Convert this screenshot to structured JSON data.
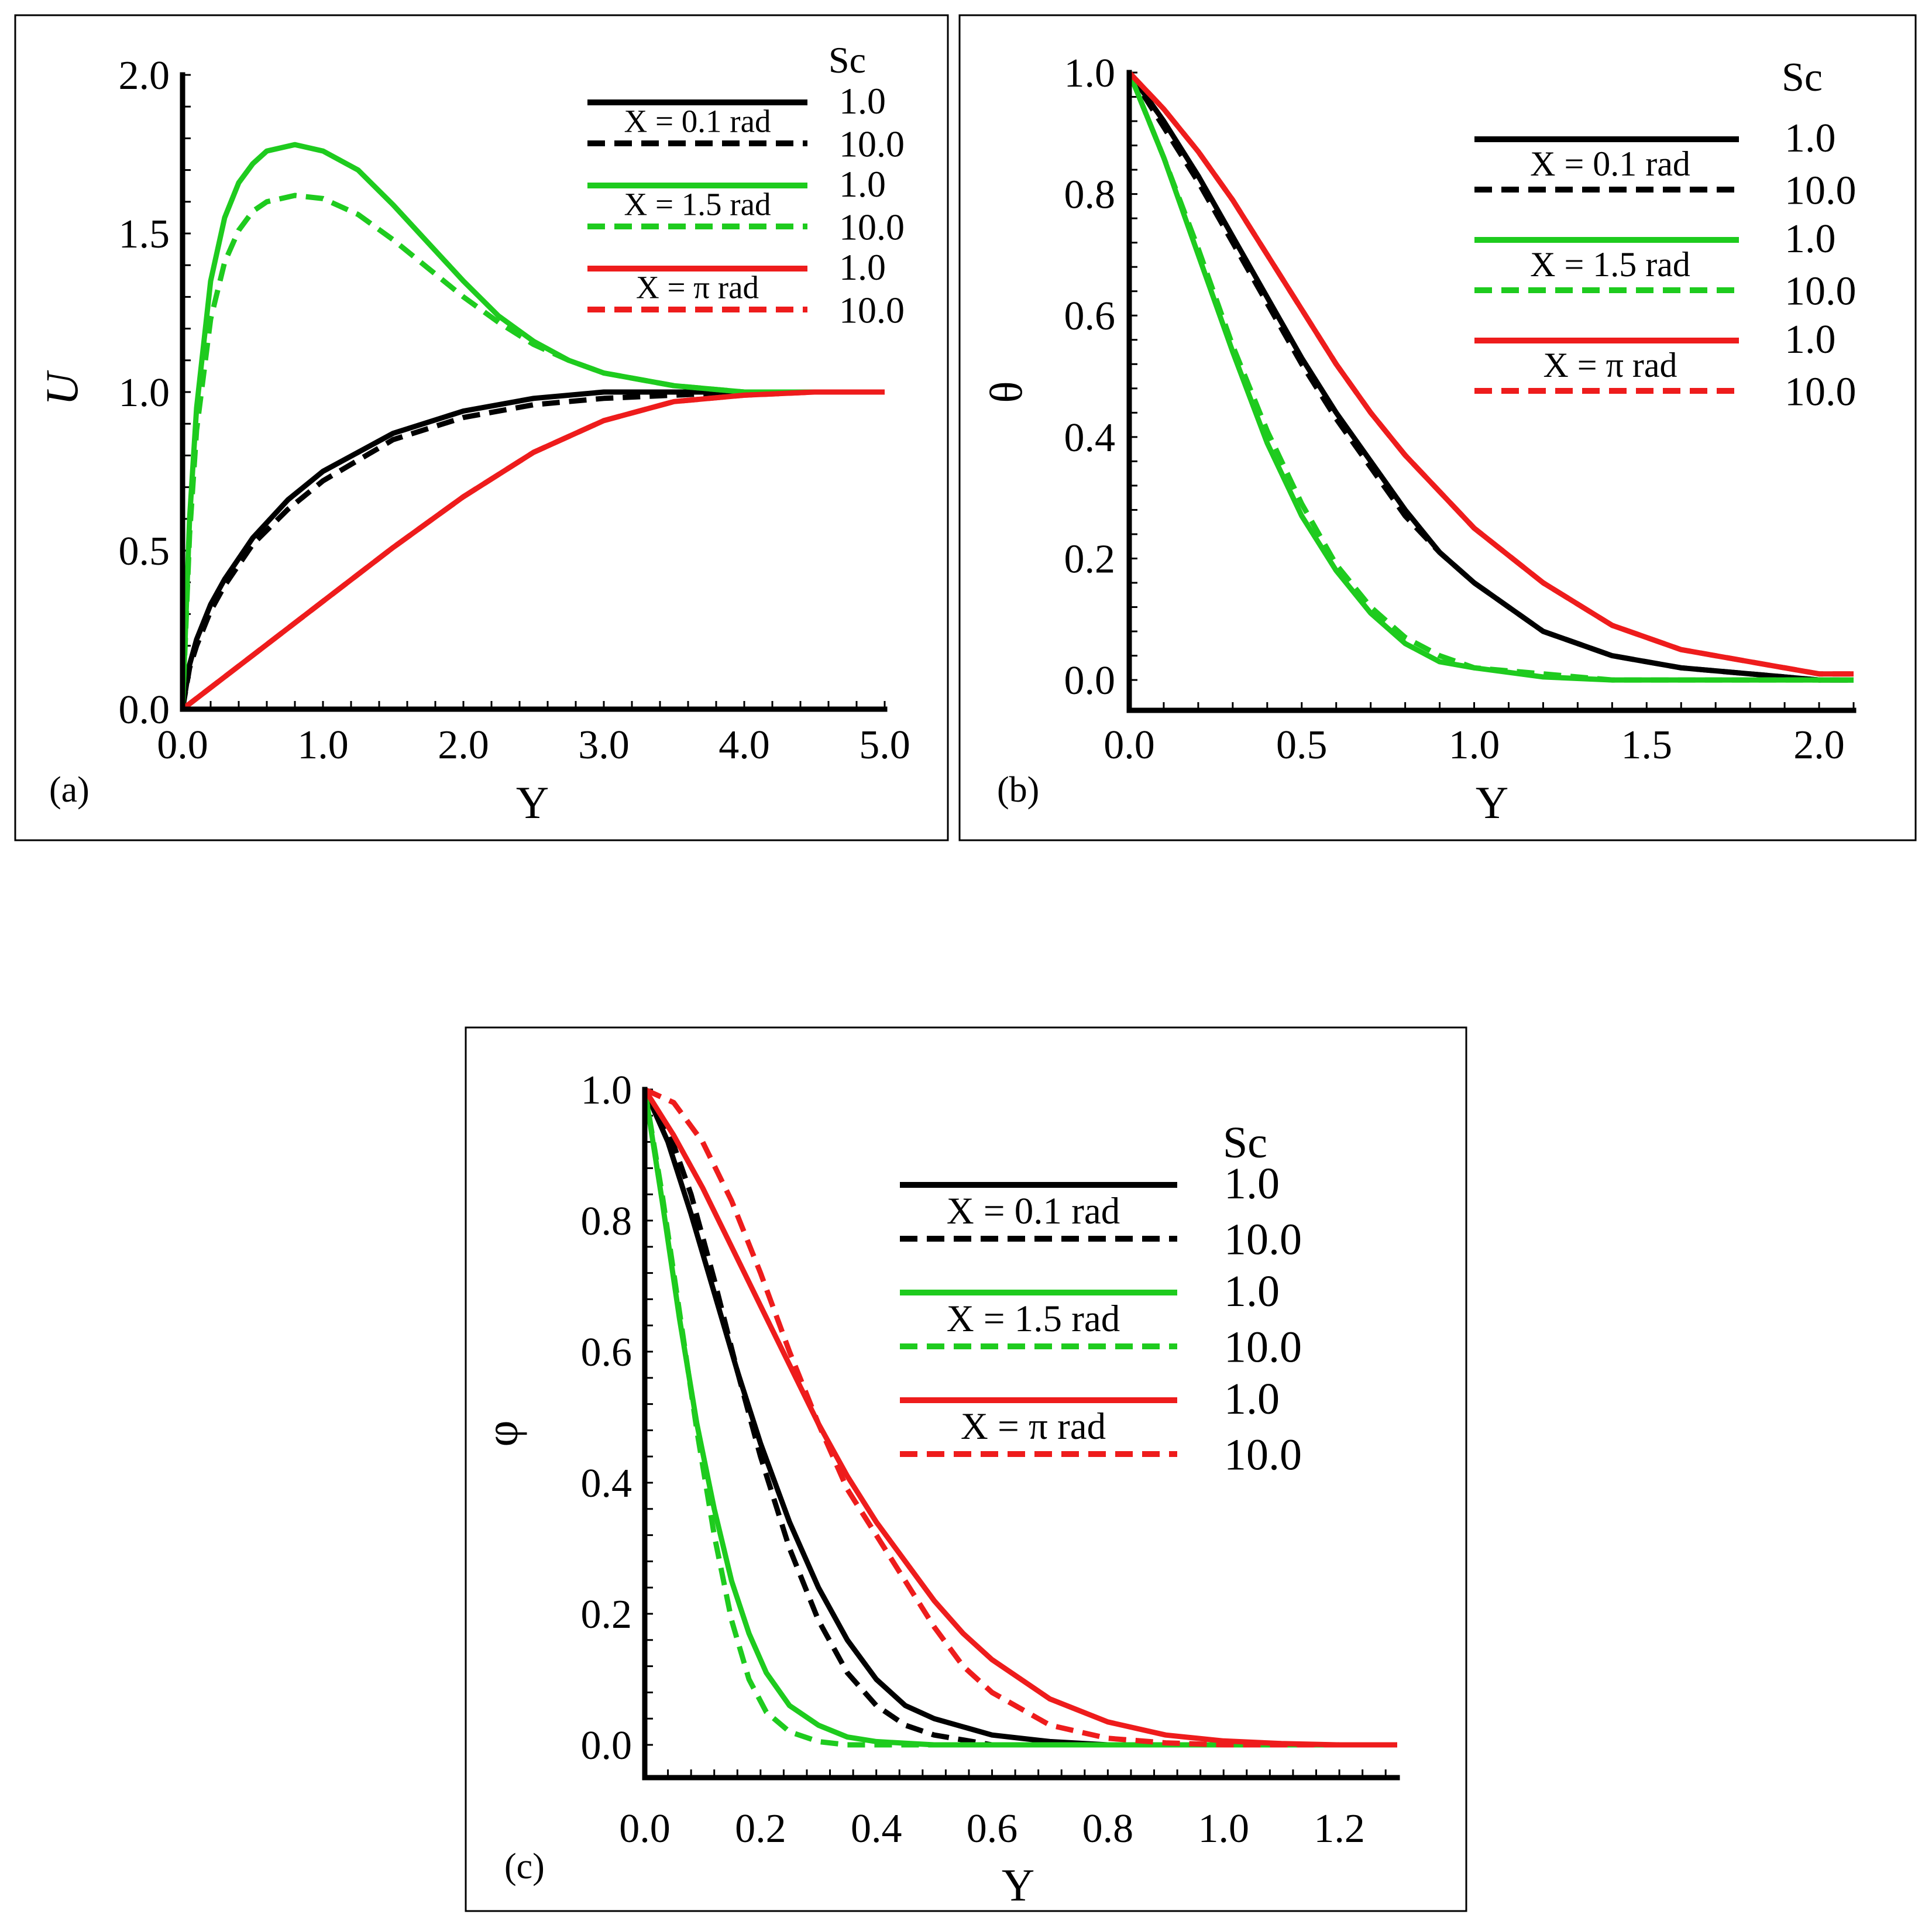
{
  "colors": {
    "black": "#000000",
    "green": "#1ecb1e",
    "red": "#ee1c1c"
  },
  "chart_data": [
    {
      "type": "line",
      "panel_label": "(a)",
      "xlabel": "Y",
      "ylabel": "U",
      "xlim": [
        0,
        5
      ],
      "ylim": [
        0,
        2
      ],
      "xticks": [
        "0.0",
        "1.0",
        "2.0",
        "3.0",
        "4.0",
        "5.0"
      ],
      "yticks": [
        "0.0",
        "0.5",
        "1.0",
        "1.5",
        "2.0"
      ],
      "xtick_values": [
        0,
        1,
        2,
        3,
        4,
        5
      ],
      "ytick_values": [
        0,
        0.5,
        1,
        1.5,
        2
      ],
      "legend": {
        "title": "Sc",
        "groups": [
          {
            "caption": "X = 0.1 rad",
            "color": "black",
            "values": [
              "1.0",
              "10.0"
            ]
          },
          {
            "caption": "X = 1.5 rad",
            "color": "green",
            "values": [
              "1.0",
              "10.0"
            ]
          },
          {
            "caption": "X = π rad",
            "color": "red",
            "values": [
              "1.0",
              "10.0"
            ]
          }
        ]
      },
      "series": [
        {
          "color": "black",
          "dash": false,
          "x": [
            0,
            0.05,
            0.1,
            0.2,
            0.3,
            0.5,
            0.75,
            1.0,
            1.5,
            2.0,
            2.5,
            3.0,
            3.5,
            4.0,
            4.5,
            5.0
          ],
          "y": [
            0,
            0.14,
            0.22,
            0.33,
            0.41,
            0.54,
            0.66,
            0.75,
            0.87,
            0.94,
            0.98,
            1.0,
            1.0,
            1.0,
            1.0,
            1.0
          ]
        },
        {
          "color": "black",
          "dash": true,
          "x": [
            0,
            0.05,
            0.1,
            0.2,
            0.3,
            0.5,
            0.75,
            1.0,
            1.5,
            2.0,
            2.5,
            3.0,
            3.5,
            4.0,
            4.5,
            5.0
          ],
          "y": [
            0,
            0.13,
            0.2,
            0.31,
            0.39,
            0.52,
            0.63,
            0.72,
            0.85,
            0.92,
            0.96,
            0.98,
            0.99,
            1.0,
            1.0,
            1.0
          ]
        },
        {
          "color": "green",
          "dash": false,
          "x": [
            0,
            0.05,
            0.1,
            0.2,
            0.3,
            0.4,
            0.5,
            0.6,
            0.8,
            1.0,
            1.25,
            1.5,
            1.75,
            2.0,
            2.25,
            2.5,
            2.75,
            3.0,
            3.5,
            4.0,
            4.5,
            5.0
          ],
          "y": [
            0,
            0.6,
            0.95,
            1.35,
            1.55,
            1.66,
            1.72,
            1.76,
            1.78,
            1.76,
            1.7,
            1.59,
            1.47,
            1.35,
            1.24,
            1.16,
            1.1,
            1.06,
            1.02,
            1.0,
            1.0,
            1.0
          ]
        },
        {
          "color": "green",
          "dash": true,
          "x": [
            0,
            0.05,
            0.1,
            0.2,
            0.3,
            0.4,
            0.5,
            0.6,
            0.8,
            1.0,
            1.25,
            1.5,
            1.75,
            2.0,
            2.25,
            2.5,
            2.75,
            3.0,
            3.5,
            4.0,
            4.5,
            5.0
          ],
          "y": [
            0,
            0.55,
            0.88,
            1.23,
            1.41,
            1.51,
            1.57,
            1.6,
            1.62,
            1.61,
            1.56,
            1.48,
            1.39,
            1.3,
            1.22,
            1.15,
            1.1,
            1.06,
            1.02,
            1.0,
            1.0,
            1.0
          ]
        },
        {
          "color": "red",
          "dash": false,
          "x": [
            0,
            0.5,
            1.0,
            1.5,
            2.0,
            2.5,
            3.0,
            3.5,
            4.0,
            4.5,
            5.0
          ],
          "y": [
            0,
            0.17,
            0.34,
            0.51,
            0.67,
            0.81,
            0.91,
            0.97,
            0.99,
            1.0,
            1.0
          ]
        },
        {
          "color": "red",
          "dash": true,
          "x": [
            0,
            0.5,
            1.0,
            1.5,
            2.0,
            2.5,
            3.0,
            3.5,
            4.0,
            4.5,
            5.0
          ],
          "y": [
            0,
            0.17,
            0.34,
            0.51,
            0.67,
            0.81,
            0.91,
            0.97,
            0.99,
            1.0,
            1.0
          ]
        }
      ]
    },
    {
      "type": "line",
      "panel_label": "(b)",
      "xlabel": "Y",
      "ylabel": "θ",
      "xlim": [
        0,
        2.1
      ],
      "ylim": [
        -0.05,
        1.0
      ],
      "xticks": [
        "0.0",
        "0.5",
        "1.0",
        "1.5",
        "2.0"
      ],
      "yticks": [
        "0.0",
        "0.2",
        "0.4",
        "0.6",
        "0.8",
        "1.0"
      ],
      "xtick_values": [
        0,
        0.5,
        1.0,
        1.5,
        2.0
      ],
      "ytick_values": [
        0,
        0.2,
        0.4,
        0.6,
        0.8,
        1.0
      ],
      "legend": {
        "title": "Sc",
        "groups": [
          {
            "caption": "X = 0.1 rad",
            "color": "black",
            "values": [
              "1.0",
              "10.0"
            ]
          },
          {
            "caption": "X = 1.5 rad",
            "color": "green",
            "values": [
              "1.0",
              "10.0"
            ]
          },
          {
            "caption": "X = π rad",
            "color": "red",
            "values": [
              "1.0",
              "10.0"
            ]
          }
        ]
      },
      "series": [
        {
          "color": "black",
          "dash": false,
          "x": [
            0,
            0.1,
            0.2,
            0.3,
            0.4,
            0.5,
            0.6,
            0.7,
            0.8,
            0.9,
            1.0,
            1.2,
            1.4,
            1.6,
            1.8,
            2.0,
            2.1
          ],
          "y": [
            1.0,
            0.92,
            0.83,
            0.73,
            0.63,
            0.53,
            0.44,
            0.36,
            0.28,
            0.21,
            0.16,
            0.08,
            0.04,
            0.02,
            0.01,
            0.0,
            0.0
          ]
        },
        {
          "color": "black",
          "dash": true,
          "x": [
            0,
            0.1,
            0.2,
            0.3,
            0.4,
            0.5,
            0.6,
            0.7,
            0.8,
            0.9,
            1.0,
            1.2,
            1.4,
            1.6,
            1.8,
            2.0,
            2.1
          ],
          "y": [
            1.0,
            0.91,
            0.82,
            0.72,
            0.62,
            0.52,
            0.43,
            0.35,
            0.27,
            0.21,
            0.16,
            0.08,
            0.04,
            0.02,
            0.01,
            0.0,
            0.0
          ]
        },
        {
          "color": "green",
          "dash": false,
          "x": [
            0,
            0.1,
            0.2,
            0.3,
            0.4,
            0.5,
            0.6,
            0.7,
            0.8,
            0.9,
            1.0,
            1.2,
            1.4,
            1.6,
            1.8,
            2.0,
            2.1
          ],
          "y": [
            1.0,
            0.86,
            0.7,
            0.54,
            0.39,
            0.27,
            0.18,
            0.11,
            0.06,
            0.03,
            0.02,
            0.005,
            0.0,
            0.0,
            0.0,
            0.0,
            0.0
          ]
        },
        {
          "color": "green",
          "dash": true,
          "x": [
            0,
            0.1,
            0.2,
            0.3,
            0.4,
            0.5,
            0.6,
            0.7,
            0.8,
            0.9,
            1.0,
            1.2,
            1.4,
            1.6,
            1.8,
            2.0,
            2.1
          ],
          "y": [
            1.0,
            0.86,
            0.71,
            0.55,
            0.41,
            0.29,
            0.19,
            0.12,
            0.07,
            0.04,
            0.02,
            0.01,
            0.0,
            0.0,
            0.0,
            0.0,
            0.0
          ]
        },
        {
          "color": "red",
          "dash": false,
          "x": [
            0,
            0.1,
            0.2,
            0.3,
            0.4,
            0.5,
            0.6,
            0.7,
            0.8,
            0.9,
            1.0,
            1.2,
            1.4,
            1.6,
            1.8,
            2.0,
            2.1
          ],
          "y": [
            1.0,
            0.94,
            0.87,
            0.79,
            0.7,
            0.61,
            0.52,
            0.44,
            0.37,
            0.31,
            0.25,
            0.16,
            0.09,
            0.05,
            0.03,
            0.01,
            0.01
          ]
        },
        {
          "color": "red",
          "dash": true,
          "x": [
            0,
            0.1,
            0.2,
            0.3,
            0.4,
            0.5,
            0.6,
            0.7,
            0.8,
            0.9,
            1.0,
            1.2,
            1.4,
            1.6,
            1.8,
            2.0,
            2.1
          ],
          "y": [
            1.0,
            0.94,
            0.87,
            0.79,
            0.7,
            0.61,
            0.52,
            0.44,
            0.37,
            0.31,
            0.25,
            0.16,
            0.09,
            0.05,
            0.03,
            0.01,
            0.01
          ]
        }
      ]
    },
    {
      "type": "line",
      "panel_label": "(c)",
      "xlabel": "Y",
      "ylabel": "φ",
      "xlim": [
        0,
        1.3
      ],
      "ylim": [
        -0.05,
        1.0
      ],
      "xticks": [
        "0.0",
        "0.2",
        "0.4",
        "0.6",
        "0.8",
        "1.0",
        "1.2"
      ],
      "yticks": [
        "0.0",
        "0.2",
        "0.4",
        "0.6",
        "0.8",
        "1.0"
      ],
      "xtick_values": [
        0,
        0.2,
        0.4,
        0.6,
        0.8,
        1.0,
        1.2
      ],
      "ytick_values": [
        0,
        0.2,
        0.4,
        0.6,
        0.8,
        1.0
      ],
      "legend": {
        "title": "Sc",
        "groups": [
          {
            "caption": "X = 0.1 rad",
            "color": "black",
            "values": [
              "1.0",
              "10.0"
            ]
          },
          {
            "caption": "X = 1.5 rad",
            "color": "green",
            "values": [
              "1.0",
              "10.0"
            ]
          },
          {
            "caption": "X = π rad",
            "color": "red",
            "values": [
              "1.0",
              "10.0"
            ]
          }
        ]
      },
      "series": [
        {
          "color": "black",
          "dash": false,
          "x": [
            0,
            0.04,
            0.08,
            0.12,
            0.16,
            0.2,
            0.25,
            0.3,
            0.35,
            0.4,
            0.45,
            0.5,
            0.6,
            0.7,
            0.8,
            0.9,
            1.0,
            1.1,
            1.2,
            1.3
          ],
          "y": [
            1.0,
            0.92,
            0.81,
            0.69,
            0.57,
            0.46,
            0.34,
            0.24,
            0.16,
            0.1,
            0.06,
            0.04,
            0.015,
            0.005,
            0.0,
            0.0,
            0.0,
            0.0,
            0.0,
            0.0
          ]
        },
        {
          "color": "black",
          "dash": true,
          "x": [
            0,
            0.04,
            0.08,
            0.12,
            0.16,
            0.2,
            0.25,
            0.3,
            0.35,
            0.4,
            0.45,
            0.5,
            0.6,
            0.7,
            0.8,
            0.9,
            1.0,
            1.1,
            1.2,
            1.3
          ],
          "y": [
            1.0,
            0.94,
            0.84,
            0.71,
            0.57,
            0.44,
            0.3,
            0.19,
            0.11,
            0.06,
            0.03,
            0.015,
            0.0,
            0.0,
            0.0,
            0.0,
            0.0,
            0.0,
            0.0,
            0.0
          ]
        },
        {
          "color": "green",
          "dash": false,
          "x": [
            0,
            0.03,
            0.06,
            0.09,
            0.12,
            0.15,
            0.18,
            0.21,
            0.25,
            0.3,
            0.35,
            0.4,
            0.5,
            0.6,
            0.8,
            1.0,
            1.3
          ],
          "y": [
            1.0,
            0.83,
            0.65,
            0.49,
            0.36,
            0.25,
            0.17,
            0.11,
            0.06,
            0.03,
            0.012,
            0.005,
            0.0,
            0.0,
            0.0,
            0.0,
            0.0
          ]
        },
        {
          "color": "green",
          "dash": true,
          "x": [
            0,
            0.03,
            0.06,
            0.09,
            0.12,
            0.15,
            0.18,
            0.21,
            0.25,
            0.3,
            0.35,
            0.4,
            0.5,
            0.6,
            0.8,
            1.0,
            1.3
          ],
          "y": [
            1.0,
            0.84,
            0.66,
            0.48,
            0.32,
            0.19,
            0.1,
            0.05,
            0.02,
            0.005,
            0.0,
            0.0,
            0.0,
            0.0,
            0.0,
            0.0,
            0.0
          ]
        },
        {
          "color": "red",
          "dash": false,
          "x": [
            0,
            0.05,
            0.1,
            0.15,
            0.2,
            0.25,
            0.3,
            0.35,
            0.4,
            0.45,
            0.5,
            0.55,
            0.6,
            0.7,
            0.8,
            0.9,
            1.0,
            1.1,
            1.2,
            1.3
          ],
          "y": [
            1.0,
            0.93,
            0.85,
            0.76,
            0.67,
            0.58,
            0.49,
            0.41,
            0.34,
            0.28,
            0.22,
            0.17,
            0.13,
            0.07,
            0.035,
            0.015,
            0.006,
            0.002,
            0.0,
            0.0
          ]
        },
        {
          "color": "red",
          "dash": true,
          "x": [
            0,
            0.05,
            0.1,
            0.15,
            0.2,
            0.25,
            0.3,
            0.35,
            0.4,
            0.45,
            0.5,
            0.55,
            0.6,
            0.7,
            0.8,
            0.9,
            1.0,
            1.1,
            1.2,
            1.3
          ],
          "y": [
            1.0,
            0.98,
            0.92,
            0.83,
            0.72,
            0.6,
            0.49,
            0.39,
            0.32,
            0.25,
            0.18,
            0.12,
            0.08,
            0.03,
            0.01,
            0.003,
            0.0,
            0.0,
            0.0,
            0.0
          ]
        }
      ]
    }
  ]
}
